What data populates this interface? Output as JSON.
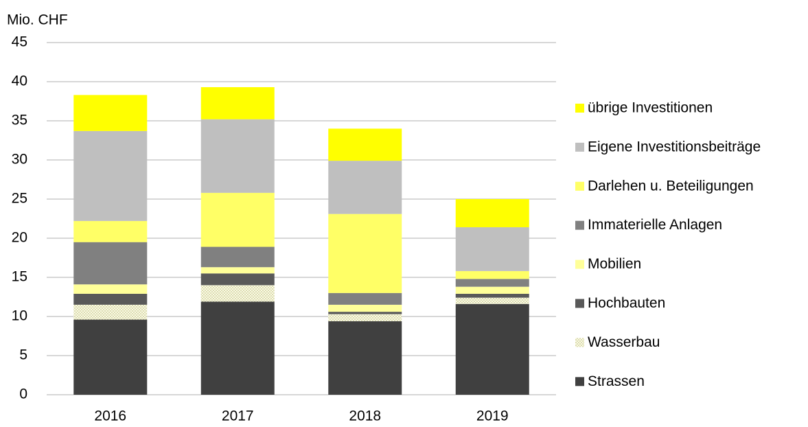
{
  "chart_data": {
    "type": "stacked-bar",
    "y_label": "Mio. CHF",
    "categories": [
      "2016",
      "2017",
      "2018",
      "2019"
    ],
    "series": [
      {
        "name": "Strassen",
        "color": "#404040",
        "values": [
          9.6,
          11.9,
          9.4,
          11.6
        ]
      },
      {
        "name": "Wasserbau",
        "color": "#eeeec4",
        "pattern": "dots",
        "values": [
          1.9,
          2.1,
          0.9,
          0.8
        ]
      },
      {
        "name": "Hochbauten",
        "color": "#595959",
        "values": [
          1.4,
          1.5,
          0.3,
          0.5
        ]
      },
      {
        "name": "Mobilien",
        "color": "#ffff99",
        "values": [
          1.2,
          0.8,
          0.9,
          0.9
        ]
      },
      {
        "name": "Immaterielle Anlagen",
        "color": "#808080",
        "values": [
          5.4,
          2.6,
          1.5,
          1.0
        ]
      },
      {
        "name": "Darlehen u. Beteiligungen",
        "color": "#ffff66",
        "values": [
          2.7,
          6.9,
          10.1,
          1.0
        ]
      },
      {
        "name": "Eigene Investitionsbeiträge",
        "color": "#bfbfbf",
        "values": [
          11.5,
          9.4,
          6.8,
          5.6
        ]
      },
      {
        "name": "übrige Investitionen",
        "color": "#ffff00",
        "values": [
          4.6,
          4.1,
          4.1,
          3.6
        ]
      }
    ],
    "ylim": [
      0,
      45
    ],
    "yticks": [
      0,
      5,
      10,
      15,
      20,
      25,
      30,
      35,
      40,
      45
    ],
    "grid": true,
    "legend": "right"
  }
}
